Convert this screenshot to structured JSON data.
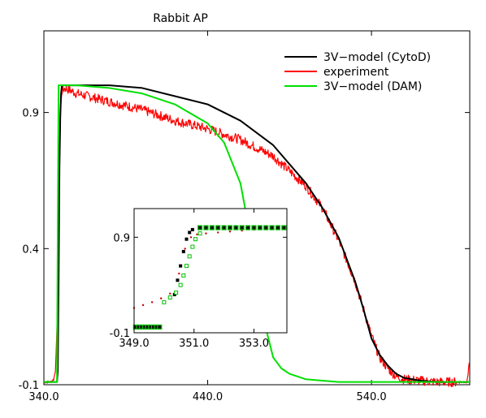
{
  "chart_data": [
    {
      "type": "line",
      "title": "Rabbit AP",
      "xlabel": "",
      "ylabel": "",
      "xlim": [
        340,
        600
      ],
      "ylim": [
        -0.1,
        1.2
      ],
      "xticks": [
        340,
        440,
        540
      ],
      "xtick_labels": [
        "340.0",
        "440.0",
        "540.0"
      ],
      "yticks": [
        -0.1,
        0.4,
        0.9
      ],
      "ytick_labels": [
        "-0.1",
        "0.4",
        "0.9"
      ],
      "grid": false,
      "legend": "top-right",
      "series": [
        {
          "name": "3V−model (CytoD)",
          "color": "#000000",
          "style": "line",
          "x": [
            340,
            348,
            348.5,
            349,
            349.5,
            350,
            350.5,
            351,
            352,
            354,
            360,
            380,
            400,
            420,
            440,
            460,
            480,
            500,
            510,
            520,
            530,
            535,
            540,
            545,
            550,
            555,
            560,
            570,
            580,
            600
          ],
          "y": [
            -0.09,
            -0.09,
            -0.05,
            0.3,
            0.7,
            0.88,
            0.97,
            1.0,
            1.0,
            1.0,
            1.0,
            1.0,
            0.99,
            0.96,
            0.93,
            0.87,
            0.78,
            0.64,
            0.55,
            0.44,
            0.28,
            0.18,
            0.07,
            0.01,
            -0.03,
            -0.06,
            -0.075,
            -0.085,
            -0.09,
            -0.09
          ]
        },
        {
          "name": "experiment",
          "color": "#ff0000",
          "style": "noisy-line",
          "x": [
            340,
            344,
            346,
            347,
            348,
            349,
            350,
            351,
            353,
            360,
            380,
            400,
            420,
            440,
            460,
            480,
            500,
            510,
            520,
            530,
            535,
            540,
            545,
            550,
            555,
            560,
            580,
            598,
            599,
            600
          ],
          "y": [
            -0.09,
            -0.09,
            -0.08,
            -0.05,
            0.1,
            0.6,
            0.9,
            0.98,
            0.99,
            0.97,
            0.94,
            0.91,
            0.87,
            0.84,
            0.8,
            0.74,
            0.63,
            0.55,
            0.43,
            0.28,
            0.18,
            0.08,
            0.0,
            -0.04,
            -0.07,
            -0.08,
            -0.09,
            -0.09,
            -0.06,
            0.0
          ]
        },
        {
          "name": "3V−model (DAM)",
          "color": "#00e000",
          "style": "line",
          "x": [
            340,
            348,
            348.5,
            349,
            350,
            352,
            360,
            380,
            400,
            420,
            440,
            450,
            460,
            465,
            470,
            475,
            480,
            485,
            490,
            495,
            500,
            510,
            520,
            540,
            600
          ],
          "y": [
            -0.09,
            -0.09,
            0.5,
            1.0,
            1.0,
            1.0,
            1.0,
            0.99,
            0.97,
            0.93,
            0.86,
            0.79,
            0.64,
            0.48,
            0.28,
            0.12,
            0.0,
            -0.04,
            -0.06,
            -0.07,
            -0.08,
            -0.085,
            -0.09,
            -0.09,
            -0.09
          ]
        }
      ]
    },
    {
      "type": "scatter",
      "title": "",
      "xlabel": "",
      "ylabel": "",
      "xlim": [
        349,
        354.1
      ],
      "ylim": [
        -0.1,
        1.2
      ],
      "xticks": [
        349,
        351,
        353
      ],
      "xtick_labels": [
        "349.0",
        "351.0",
        "353.0"
      ],
      "yticks": [
        -0.1,
        0.9
      ],
      "ytick_labels": [
        "-0.1",
        "0.9"
      ],
      "grid": false,
      "legend": "none",
      "series": [
        {
          "name": "3V−model (CytoD)",
          "color": "#000000",
          "marker": "filled-square",
          "x": [
            350.35,
            350.45,
            350.55,
            350.65,
            350.75,
            350.85,
            350.95
          ],
          "y": [
            0.3,
            0.45,
            0.6,
            0.75,
            0.88,
            0.95,
            0.98
          ]
        },
        {
          "name": "experiment",
          "color": "#cc0000",
          "marker": "dot",
          "x": [
            349.0,
            349.3,
            349.6,
            349.9,
            350.2,
            350.5,
            350.7,
            350.9,
            351.1,
            351.4,
            351.8,
            352.2,
            352.6,
            353.0,
            353.4,
            353.8,
            354.0
          ],
          "y": [
            0.16,
            0.19,
            0.22,
            0.26,
            0.31,
            0.52,
            0.78,
            0.9,
            0.93,
            0.94,
            0.95,
            0.96,
            0.97,
            0.98,
            0.99,
            1.0,
            1.0
          ]
        },
        {
          "name": "3V−model (DAM)",
          "color": "#00c000",
          "marker": "open-square",
          "x": [
            350.0,
            350.2,
            350.4,
            350.55,
            350.65,
            350.75,
            350.85,
            350.95,
            351.05,
            351.2
          ],
          "y": [
            0.22,
            0.27,
            0.32,
            0.4,
            0.5,
            0.6,
            0.7,
            0.8,
            0.88,
            0.94
          ]
        },
        {
          "name": "3V−model (DAM)",
          "color": "#00c000",
          "marker": "filled-square-outlined",
          "x": [
            349.05,
            349.15,
            349.25,
            349.35,
            349.45,
            349.55,
            349.65,
            349.75,
            349.85,
            351.2,
            351.4,
            351.6,
            351.8,
            352.0,
            352.2,
            352.4,
            352.6,
            352.8,
            353.0,
            353.2,
            353.4,
            353.6,
            353.8,
            354.0
          ],
          "y": [
            -0.04,
            -0.04,
            -0.04,
            -0.04,
            -0.04,
            -0.04,
            -0.04,
            -0.04,
            -0.04,
            1.0,
            1.0,
            1.0,
            1.0,
            1.0,
            1.0,
            1.0,
            1.0,
            1.0,
            1.0,
            1.0,
            1.0,
            1.0,
            1.0,
            1.0
          ]
        }
      ]
    }
  ]
}
